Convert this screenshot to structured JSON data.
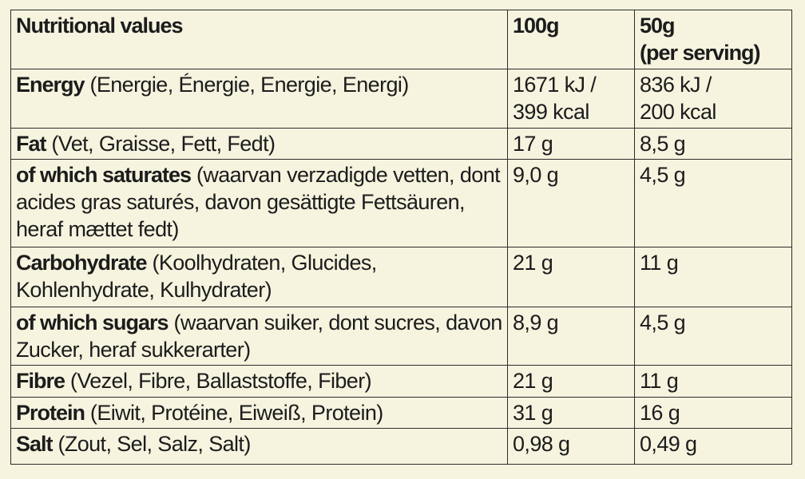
{
  "header": {
    "col1": "Nutritional values",
    "col2": "100g",
    "col3_line1": "50g",
    "col3_line2": "(per serving)"
  },
  "rows": [
    {
      "name": "Energy",
      "translations": "(Energie, Énergie, Energie, Energi)",
      "per100_line1": "1671 kJ /",
      "per100_line2": "399 kcal",
      "per50_line1": "836 kJ /",
      "per50_line2": "200 kcal"
    },
    {
      "name": "Fat",
      "translations": "(Vet, Graisse, Fett, Fedt)",
      "per100": "17 g",
      "per50": "8,5 g"
    },
    {
      "name": "of which saturates",
      "translations": "(waarvan verzadigde vetten, dont acides gras saturés, davon gesättigte Fettsäuren, heraf mættet fedt)",
      "per100": "9,0 g",
      "per50": "4,5 g"
    },
    {
      "name": "Carbohydrate",
      "translations": "(Koolhydraten, Glucides, Kohlenhydrate, Kulhydrater)",
      "per100": "21 g",
      "per50": "11 g"
    },
    {
      "name": "of which sugars",
      "translations": "(waarvan suiker, dont sucres, davon Zucker, heraf sukkerarter)",
      "per100": "8,9 g",
      "per50": "4,5 g"
    },
    {
      "name": "Fibre",
      "translations": "(Vezel, Fibre, Ballaststoffe, Fiber)",
      "per100": "21 g",
      "per50": "11 g"
    },
    {
      "name": "Protein",
      "translations": "(Eiwit, Protéine, Eiweiß, Protein)",
      "per100": "31 g",
      "per50": "16 g"
    },
    {
      "name": "Salt",
      "translations": "(Zout, Sel, Salz, Salt)",
      "per100": "0,98 g",
      "per50": "0,49 g"
    }
  ]
}
